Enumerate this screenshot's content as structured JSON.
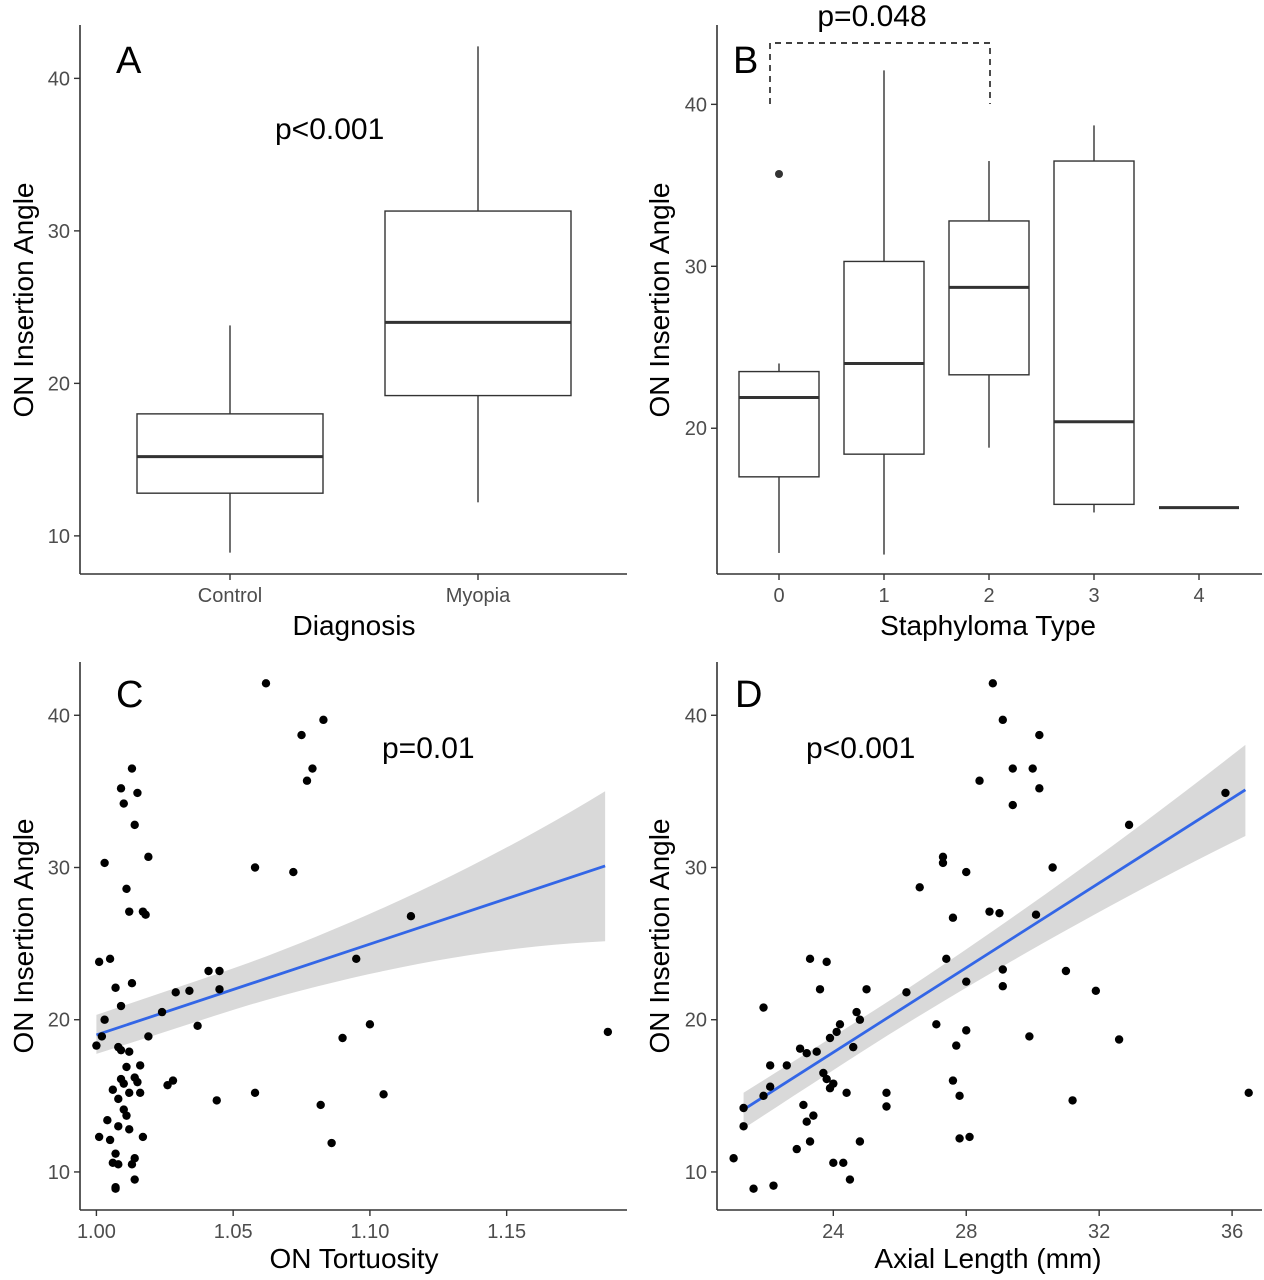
{
  "chart_data": [
    {
      "panel": "A",
      "type": "box",
      "xlabel": "Diagnosis",
      "ylabel": "ON Insertion Angle",
      "annotation": "p<0.001",
      "yticks": [
        10,
        20,
        30,
        40
      ],
      "ylim": [
        7.5,
        43.5
      ],
      "categories": [
        "Control",
        "Myopia"
      ],
      "boxes": [
        {
          "category": "Control",
          "whisker_low": 8.9,
          "q1": 12.8,
          "median": 15.2,
          "q3": 18.0,
          "whisker_high": 23.8,
          "outliers": []
        },
        {
          "category": "Myopia",
          "whisker_low": 12.2,
          "q1": 19.2,
          "median": 24.0,
          "q3": 31.3,
          "whisker_high": 42.1,
          "outliers": []
        }
      ]
    },
    {
      "panel": "B",
      "type": "box",
      "xlabel": "Staphyloma Type",
      "ylabel": "ON Insertion Angle",
      "annotation": "p=0.048",
      "yticks": [
        20,
        30,
        40
      ],
      "ylim": [
        11.0,
        44.9
      ],
      "categories": [
        "0",
        "1",
        "2",
        "3",
        "4"
      ],
      "boxes": [
        {
          "category": "0",
          "whisker_low": 12.3,
          "q1": 17.0,
          "median": 21.9,
          "q3": 23.5,
          "whisker_high": 24.0,
          "outliers": [
            35.7
          ]
        },
        {
          "category": "1",
          "whisker_low": 12.2,
          "q1": 18.4,
          "median": 24.0,
          "q3": 30.3,
          "whisker_high": 42.1,
          "outliers": []
        },
        {
          "category": "2",
          "whisker_low": 18.8,
          "q1": 23.3,
          "median": 28.7,
          "q3": 32.8,
          "whisker_high": 36.5,
          "outliers": []
        },
        {
          "category": "3",
          "whisker_low": 14.8,
          "q1": 15.3,
          "median": 20.4,
          "q3": 36.5,
          "whisker_high": 38.7,
          "outliers": []
        },
        {
          "category": "4",
          "whisker_low": 15.1,
          "q1": 15.1,
          "median": 15.1,
          "q3": 15.1,
          "whisker_high": 15.1,
          "outliers": []
        }
      ],
      "comparison": {
        "from": "0",
        "to": "2",
        "label": "p=0.048"
      }
    },
    {
      "panel": "C",
      "type": "scatter",
      "xlabel": "ON Tortuosity",
      "ylabel": "ON Insertion Angle",
      "annotation": "p=0.01",
      "xticks": [
        "1.00",
        "1.05",
        "1.10",
        "1.15"
      ],
      "yticks": [
        10,
        20,
        30,
        40
      ],
      "xlim": [
        0.994,
        1.194
      ],
      "ylim": [
        7.5,
        43.5
      ],
      "points": [
        [
          1.0,
          18.3
        ],
        [
          1.001,
          12.3
        ],
        [
          1.001,
          23.8
        ],
        [
          1.002,
          18.9
        ],
        [
          1.003,
          20.0
        ],
        [
          1.003,
          30.3
        ],
        [
          1.004,
          13.4
        ],
        [
          1.005,
          24.0
        ],
        [
          1.005,
          12.1
        ],
        [
          1.006,
          10.6
        ],
        [
          1.006,
          15.4
        ],
        [
          1.007,
          22.1
        ],
        [
          1.007,
          9.0
        ],
        [
          1.007,
          11.2
        ],
        [
          1.007,
          8.9
        ],
        [
          1.008,
          14.8
        ],
        [
          1.008,
          10.5
        ],
        [
          1.008,
          13.0
        ],
        [
          1.008,
          18.2
        ],
        [
          1.009,
          35.2
        ],
        [
          1.009,
          18.0
        ],
        [
          1.009,
          16.1
        ],
        [
          1.009,
          20.9
        ],
        [
          1.01,
          34.2
        ],
        [
          1.01,
          15.8
        ],
        [
          1.01,
          14.1
        ],
        [
          1.011,
          16.9
        ],
        [
          1.011,
          13.7
        ],
        [
          1.011,
          28.6
        ],
        [
          1.012,
          27.1
        ],
        [
          1.012,
          17.9
        ],
        [
          1.012,
          15.2
        ],
        [
          1.012,
          12.8
        ],
        [
          1.013,
          36.5
        ],
        [
          1.013,
          22.4
        ],
        [
          1.013,
          10.5
        ],
        [
          1.014,
          16.2
        ],
        [
          1.014,
          32.8
        ],
        [
          1.014,
          10.9
        ],
        [
          1.014,
          9.5
        ],
        [
          1.015,
          34.9
        ],
        [
          1.015,
          15.9
        ],
        [
          1.016,
          17.0
        ],
        [
          1.016,
          15.2
        ],
        [
          1.017,
          27.1
        ],
        [
          1.017,
          12.3
        ],
        [
          1.018,
          26.9
        ],
        [
          1.019,
          30.7
        ],
        [
          1.019,
          18.9
        ],
        [
          1.024,
          20.5
        ],
        [
          1.026,
          15.7
        ],
        [
          1.028,
          16.0
        ],
        [
          1.029,
          21.8
        ],
        [
          1.034,
          21.9
        ],
        [
          1.037,
          19.6
        ],
        [
          1.041,
          23.2
        ],
        [
          1.044,
          14.7
        ],
        [
          1.045,
          23.2
        ],
        [
          1.045,
          22.0
        ],
        [
          1.058,
          30.0
        ],
        [
          1.058,
          15.2
        ],
        [
          1.062,
          42.1
        ],
        [
          1.072,
          29.7
        ],
        [
          1.075,
          38.7
        ],
        [
          1.077,
          35.7
        ],
        [
          1.079,
          36.5
        ],
        [
          1.082,
          14.4
        ],
        [
          1.083,
          39.7
        ],
        [
          1.086,
          11.9
        ],
        [
          1.09,
          18.8
        ],
        [
          1.095,
          24.0
        ],
        [
          1.1,
          19.7
        ],
        [
          1.105,
          15.1
        ],
        [
          1.115,
          26.8
        ],
        [
          1.187,
          19.2
        ]
      ],
      "fit": {
        "x": [
          1.0,
          1.186
        ],
        "y": [
          19.0,
          30.1
        ],
        "ci_lower": [
          17.3,
          24.2
        ],
        "ci_upper": [
          20.8,
          35.9
        ]
      }
    },
    {
      "panel": "D",
      "type": "scatter",
      "xlabel": "Axial Length (mm)",
      "ylabel": "ON Insertion Angle",
      "annotation": "p<0.001",
      "xticks": [
        24,
        28,
        32,
        36
      ],
      "yticks": [
        10,
        20,
        30,
        40
      ],
      "xlim": [
        20.5,
        36.9
      ],
      "ylim": [
        7.5,
        43.5
      ],
      "points": [
        [
          21.0,
          10.9
        ],
        [
          21.3,
          14.2
        ],
        [
          21.3,
          13.0
        ],
        [
          21.6,
          8.9
        ],
        [
          21.9,
          15.0
        ],
        [
          21.9,
          20.8
        ],
        [
          22.1,
          17.0
        ],
        [
          22.1,
          15.6
        ],
        [
          22.2,
          9.1
        ],
        [
          22.6,
          17.0
        ],
        [
          22.9,
          11.5
        ],
        [
          23.0,
          18.1
        ],
        [
          23.1,
          14.4
        ],
        [
          23.2,
          13.3
        ],
        [
          23.2,
          17.8
        ],
        [
          23.3,
          24.0
        ],
        [
          23.3,
          12.0
        ],
        [
          23.4,
          13.7
        ],
        [
          23.5,
          17.9
        ],
        [
          23.6,
          22.0
        ],
        [
          23.7,
          16.5
        ],
        [
          23.8,
          23.8
        ],
        [
          23.8,
          16.1
        ],
        [
          23.9,
          15.5
        ],
        [
          23.9,
          18.8
        ],
        [
          24.0,
          15.8
        ],
        [
          24.0,
          10.6
        ],
        [
          24.1,
          19.2
        ],
        [
          24.2,
          19.7
        ],
        [
          24.3,
          10.6
        ],
        [
          24.4,
          15.2
        ],
        [
          24.5,
          9.5
        ],
        [
          24.6,
          18.2
        ],
        [
          24.7,
          20.5
        ],
        [
          24.8,
          12.0
        ],
        [
          24.8,
          20.0
        ],
        [
          25.0,
          22.0
        ],
        [
          25.6,
          15.2
        ],
        [
          25.6,
          14.3
        ],
        [
          26.2,
          21.8
        ],
        [
          26.6,
          28.7
        ],
        [
          27.1,
          19.7
        ],
        [
          27.3,
          30.7
        ],
        [
          27.3,
          30.3
        ],
        [
          27.4,
          24.0
        ],
        [
          27.6,
          26.7
        ],
        [
          27.6,
          16.0
        ],
        [
          27.7,
          18.3
        ],
        [
          27.8,
          15.0
        ],
        [
          27.8,
          12.2
        ],
        [
          28.0,
          29.7
        ],
        [
          28.0,
          22.5
        ],
        [
          28.0,
          19.3
        ],
        [
          28.1,
          12.3
        ],
        [
          28.4,
          35.7
        ],
        [
          28.7,
          27.1
        ],
        [
          28.8,
          42.1
        ],
        [
          29.0,
          27.0
        ],
        [
          29.1,
          39.7
        ],
        [
          29.1,
          23.3
        ],
        [
          29.1,
          22.2
        ],
        [
          29.4,
          34.1
        ],
        [
          29.4,
          36.5
        ],
        [
          29.9,
          18.9
        ],
        [
          30.0,
          36.5
        ],
        [
          30.1,
          26.9
        ],
        [
          30.2,
          38.7
        ],
        [
          30.2,
          35.2
        ],
        [
          30.6,
          30.0
        ],
        [
          31.0,
          23.2
        ],
        [
          31.2,
          14.7
        ],
        [
          31.9,
          21.9
        ],
        [
          32.6,
          18.7
        ],
        [
          32.9,
          32.8
        ],
        [
          35.8,
          34.9
        ],
        [
          36.5,
          15.2
        ]
      ],
      "fit": {
        "x": [
          21.3,
          36.4
        ],
        "y": [
          14.1,
          35.1
        ],
        "ci_lower": [
          12.4,
          31.8
        ],
        "ci_upper": [
          15.6,
          38.4
        ]
      }
    }
  ],
  "colors": {
    "fit_line": "#3366e6",
    "ci_band": "#d9d9d9",
    "points": "#000000",
    "axis": "#333333"
  }
}
